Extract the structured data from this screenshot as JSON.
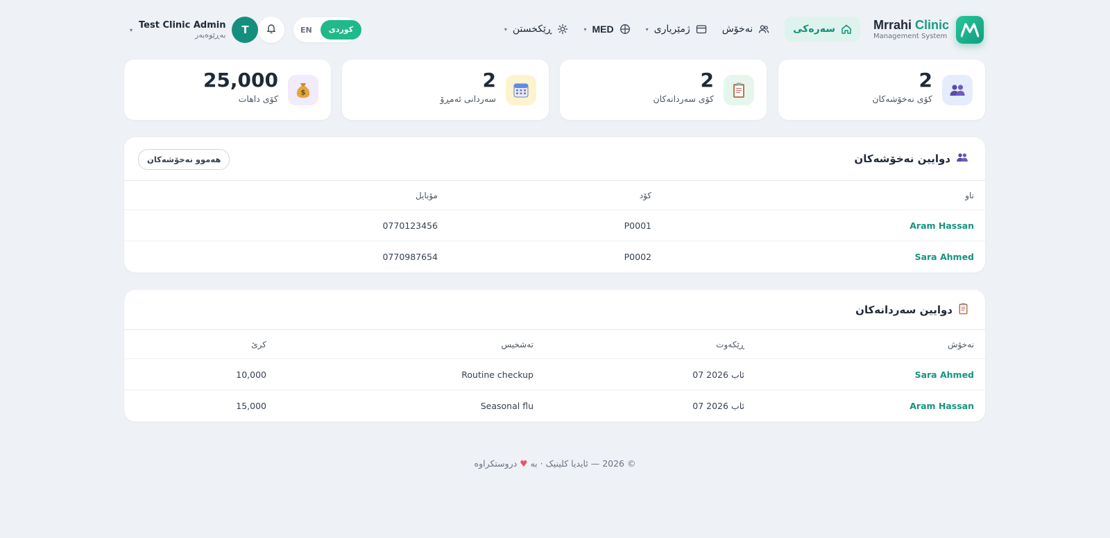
{
  "header": {
    "brand": {
      "name_part1": "Mrrahi",
      "name_part2": "Clinic",
      "subtitle": "Management System"
    },
    "nav": [
      {
        "label": "سەرەکی",
        "icon": "home-icon",
        "active": true
      },
      {
        "label": "نەخۆش",
        "icon": "users-icon"
      },
      {
        "label": "ژمێریاری",
        "icon": "wallet-icon"
      },
      {
        "label": "MED",
        "icon": "globe-icon"
      },
      {
        "label": "ڕێکخستن",
        "icon": "settings-icon"
      }
    ],
    "language": {
      "active": "كوردی",
      "other": "EN"
    },
    "user": {
      "name": "Test Clinic Admin",
      "role": "بەڕێوەبەر",
      "initial": "T"
    }
  },
  "stats": [
    {
      "value": "2",
      "label": "کۆی نەخۆشەکان",
      "icon": "patients-icon",
      "icon_bg": "#e5ecfb"
    },
    {
      "value": "2",
      "label": "کۆی سەردانەکان",
      "icon": "clipboard-icon",
      "icon_bg": "#e6f6ec"
    },
    {
      "value": "2",
      "label": "سەردانی ئەمڕۆ",
      "icon": "calendar-icon",
      "icon_bg": "#fdf3cf"
    },
    {
      "value": "25,000",
      "label": "کۆی داهات",
      "icon": "money-bag-icon",
      "icon_bg": "#f1ebfd"
    }
  ],
  "recent_patients": {
    "title": "دوایین نەخۆشەکان",
    "button": "هەموو نەخۆشەکان",
    "columns": [
      "ناو",
      "کۆد",
      "مۆبایل"
    ],
    "rows": [
      {
        "name": "Aram Hassan",
        "code": "P0001",
        "mobile": "0770123456"
      },
      {
        "name": "Sara Ahmed",
        "code": "P0002",
        "mobile": "0770987654"
      }
    ]
  },
  "recent_visits": {
    "title": "دوایین سەردانەکان",
    "columns": [
      "نەخۆش",
      "ڕێکەوت",
      "تەشخیس",
      "کرێ"
    ],
    "rows": [
      {
        "patient": "Sara Ahmed",
        "date": "07 ئاب 2026",
        "diagnosis": "Routine checkup",
        "fee": "10,000"
      },
      {
        "patient": "Aram Hassan",
        "date": "07 ئاب 2026",
        "diagnosis": "Seasonal flu",
        "fee": "15,000"
      }
    ]
  },
  "footer": {
    "copyright": "© 2026 — ئایدیا کلینیک · بە",
    "heart": "♥",
    "suffix": "دروستکراوە"
  },
  "colors": {
    "accent": "#169a84",
    "background": "#eef1f5",
    "card": "#ffffff"
  }
}
